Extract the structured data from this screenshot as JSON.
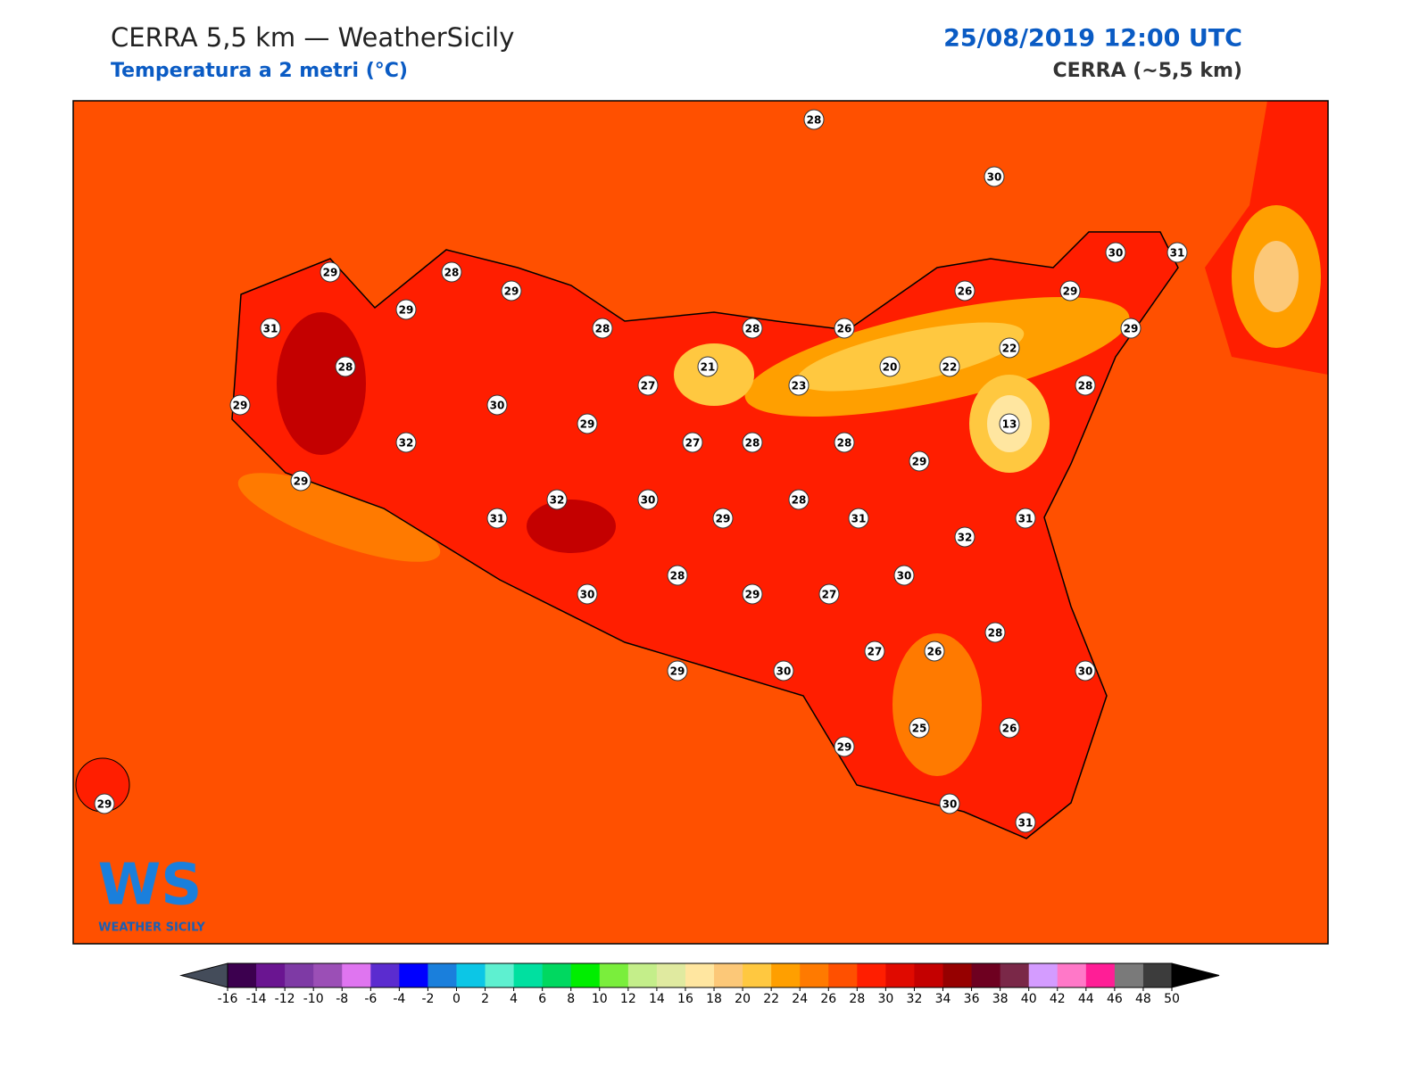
{
  "header": {
    "title": "CERRA 5,5 km — WeatherSicily",
    "subtitle": "Temperatura a 2 metri (°C)",
    "date": "25/08/2019 12:00 UTC",
    "model": "CERRA (~5,5 km)"
  },
  "stations": [
    28,
    30,
    29,
    28,
    29,
    29,
    31,
    28,
    28,
    26,
    26,
    29,
    30,
    31,
    29,
    28,
    21,
    27,
    23,
    20,
    22,
    22,
    28,
    29,
    30,
    29,
    13,
    32,
    27,
    28,
    28,
    29,
    29,
    32,
    30,
    28,
    31,
    29,
    31,
    31,
    32,
    30,
    28,
    30,
    29,
    27,
    28,
    27,
    26,
    30,
    29,
    30,
    25,
    26,
    29,
    30,
    31,
    29
  ],
  "logo": {
    "mark": "WS",
    "name": "WEATHER SICILY"
  },
  "colorbar": {
    "ticks": [
      -16,
      -14,
      -12,
      -10,
      -8,
      -6,
      -4,
      -2,
      0,
      2,
      4,
      6,
      8,
      10,
      12,
      14,
      16,
      18,
      20,
      22,
      24,
      26,
      28,
      30,
      32,
      34,
      36,
      38,
      40,
      42,
      44,
      46,
      48,
      50
    ],
    "colors": [
      "#3c004f",
      "#6a1591",
      "#7e3aa5",
      "#9b4fb6",
      "#df75f0",
      "#5b2ccf",
      "#0000ff",
      "#1a7fdc",
      "#0cc6e6",
      "#5ef0d0",
      "#00e0a0",
      "#00d860",
      "#00ee00",
      "#7aee3c",
      "#c4ee8a",
      "#e0eaa0",
      "#ffe6a0",
      "#fcc878",
      "#ffc840",
      "#ff9f00",
      "#ff7a00",
      "#ff5000",
      "#ff1e00",
      "#e00a00",
      "#c40000",
      "#960000",
      "#6e0020",
      "#7a2848",
      "#d49cff",
      "#ff78c8",
      "#ff1e96",
      "#7a7a7a",
      "#3c3c3c"
    ],
    "under": "#444c5a",
    "over": "#000000"
  }
}
